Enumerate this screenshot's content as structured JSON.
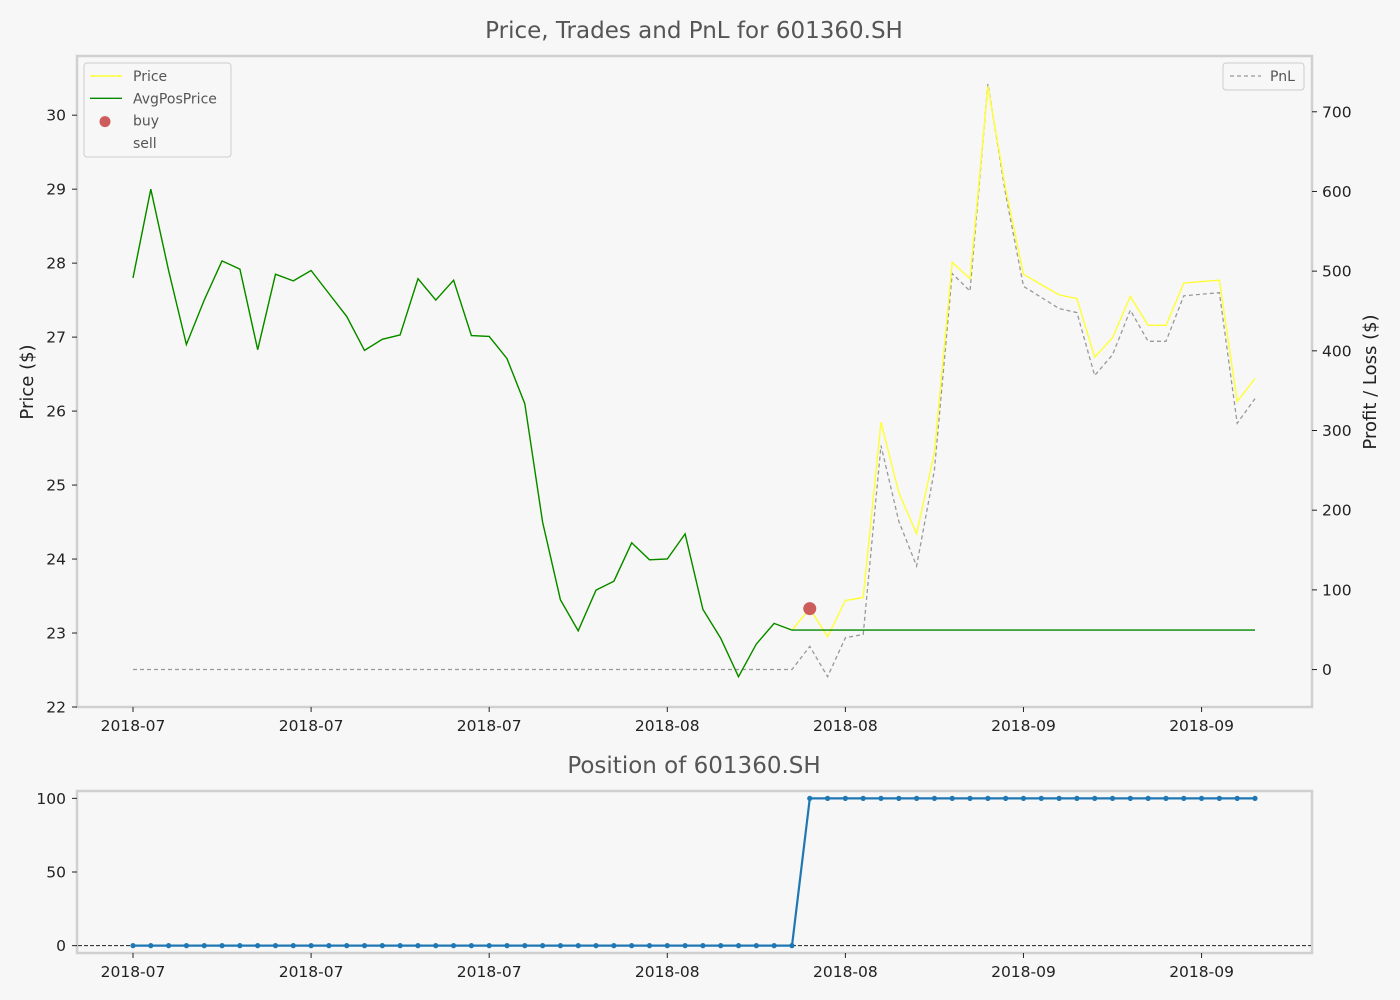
{
  "colors": {
    "background": "#f7f7f7",
    "frame": "#d0d0d0",
    "price": "#ffff33",
    "avgpos": "#008800",
    "pnl": "#999999",
    "buy": "#cd5c5c",
    "position": "#1f77b4",
    "zero_line": "#222222"
  },
  "chart_data": [
    {
      "type": "line",
      "title": "Price, Trades and PnL for 601360.SH",
      "ylabel": "Price ($)",
      "y2label": "Profit / Loss ($)",
      "ylim": [
        22,
        30.8
      ],
      "y2lim": [
        -47,
        770
      ],
      "yticks": [
        22,
        23,
        24,
        25,
        26,
        27,
        28,
        29,
        30
      ],
      "y2ticks": [
        0,
        100,
        200,
        300,
        400,
        500,
        600,
        700
      ],
      "xtick_labels": [
        "2018-07",
        "2018-07",
        "2018-07",
        "2018-08",
        "2018-08",
        "2018-09",
        "2018-09"
      ],
      "xtick_positions": [
        0,
        10,
        20,
        30,
        40,
        50,
        60
      ],
      "legend_left": [
        {
          "label": "Price",
          "marker": "line",
          "color": "#ffff33"
        },
        {
          "label": "AvgPosPrice",
          "marker": "line",
          "color": "#008800"
        },
        {
          "label": "buy",
          "marker": "dot",
          "color": "#cd5c5c"
        },
        {
          "label": "sell",
          "marker": "none",
          "color": "#f7f7f7"
        }
      ],
      "legend_right": [
        {
          "label": "PnL",
          "marker": "dash",
          "color": "#999999"
        }
      ],
      "legend_placement": [
        "top-left",
        "top-right"
      ],
      "series": [
        {
          "name": "Price",
          "axis": "left",
          "values": [
            27.8,
            29.0,
            27.9,
            26.9,
            27.5,
            28.03,
            27.92,
            26.83,
            27.85,
            27.76,
            27.9,
            27.59,
            27.28,
            26.82,
            26.97,
            27.03,
            27.79,
            27.5,
            27.77,
            27.02,
            27.01,
            26.71,
            26.1,
            24.5,
            23.45,
            23.03,
            23.58,
            23.7,
            24.22,
            23.99,
            24.0,
            24.34,
            23.32,
            22.93,
            22.41,
            22.85,
            23.13,
            23.04,
            23.33,
            22.95,
            23.44,
            23.48,
            25.85,
            24.9,
            24.34,
            25.44,
            28.01,
            27.79,
            30.39,
            29.0,
            27.85,
            27.71,
            27.57,
            27.52,
            26.73,
            26.99,
            27.55,
            27.16,
            27.16,
            27.73,
            27.75,
            27.77,
            26.13,
            26.44
          ]
        },
        {
          "name": "AvgPosPrice",
          "axis": "left",
          "values": [
            27.8,
            29.0,
            27.9,
            26.9,
            27.5,
            28.03,
            27.92,
            26.83,
            27.85,
            27.76,
            27.9,
            27.59,
            27.28,
            26.82,
            26.97,
            27.03,
            27.79,
            27.5,
            27.77,
            27.02,
            27.01,
            26.71,
            26.1,
            24.5,
            23.45,
            23.03,
            23.58,
            23.7,
            24.22,
            23.99,
            24.0,
            24.34,
            23.32,
            22.93,
            22.41,
            22.85,
            23.13,
            23.04,
            23.04,
            23.04,
            23.04,
            23.04,
            23.04,
            23.04,
            23.04,
            23.04,
            23.04,
            23.04,
            23.04,
            23.04,
            23.04,
            23.04,
            23.04,
            23.04,
            23.04,
            23.04,
            23.04,
            23.04,
            23.04,
            23.04,
            23.04,
            23.04,
            23.04,
            23.04
          ]
        },
        {
          "name": "PnL",
          "axis": "right",
          "values": [
            0,
            0,
            0,
            0,
            0,
            0,
            0,
            0,
            0,
            0,
            0,
            0,
            0,
            0,
            0,
            0,
            0,
            0,
            0,
            0,
            0,
            0,
            0,
            0,
            0,
            0,
            0,
            0,
            0,
            0,
            0,
            0,
            0,
            0,
            0,
            0,
            0,
            0,
            29,
            -9,
            40,
            44,
            281,
            186,
            130,
            250,
            497,
            475,
            735,
            596,
            481,
            467,
            453,
            448,
            369,
            395,
            451,
            412,
            412,
            469,
            471,
            473,
            309,
            340
          ]
        },
        {
          "name": "buy",
          "axis": "left",
          "type": "scatter",
          "points": [
            {
              "x": 38,
              "y": 23.33
            }
          ]
        }
      ]
    },
    {
      "type": "line",
      "title": "Position of 601360.SH",
      "ylim": [
        -5,
        105
      ],
      "yticks": [
        0,
        50,
        100
      ],
      "xtick_labels": [
        "2018-07",
        "2018-07",
        "2018-07",
        "2018-08",
        "2018-08",
        "2018-09",
        "2018-09"
      ],
      "xtick_positions": [
        0,
        10,
        20,
        30,
        40,
        50,
        60
      ],
      "series": [
        {
          "name": "Position",
          "values": [
            0,
            0,
            0,
            0,
            0,
            0,
            0,
            0,
            0,
            0,
            0,
            0,
            0,
            0,
            0,
            0,
            0,
            0,
            0,
            0,
            0,
            0,
            0,
            0,
            0,
            0,
            0,
            0,
            0,
            0,
            0,
            0,
            0,
            0,
            0,
            0,
            0,
            0,
            100,
            100,
            100,
            100,
            100,
            100,
            100,
            100,
            100,
            100,
            100,
            100,
            100,
            100,
            100,
            100,
            100,
            100,
            100,
            100,
            100,
            100,
            100,
            100,
            100,
            100
          ]
        }
      ],
      "reference_line": 0
    }
  ]
}
